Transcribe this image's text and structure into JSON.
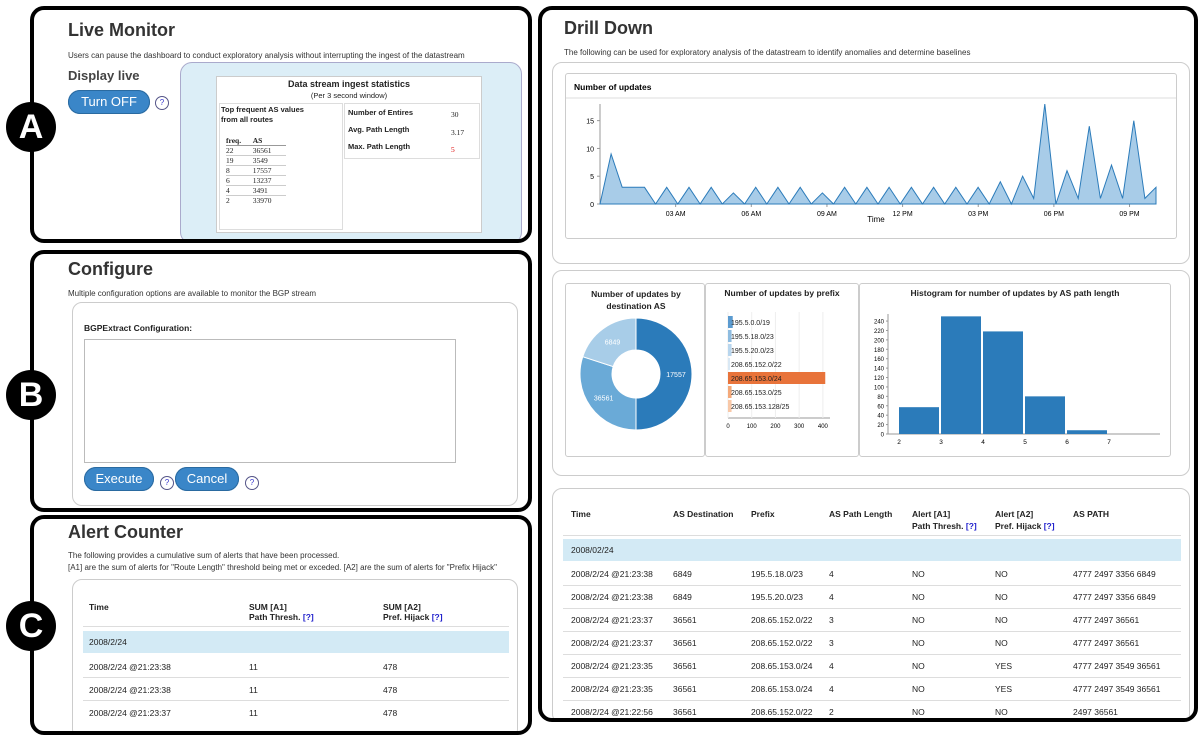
{
  "live_monitor": {
    "title": "Live Monitor",
    "description": "Users can pause the dashboard to conduct exploratory analysis without interrupting the ingest of the datastream",
    "display_live_label": "Display live",
    "turn_off_label": "Turn OFF",
    "help": "?",
    "stats": {
      "title": "Data stream ingest statistics",
      "subtitle": "(Per 3 second window)",
      "top_as_title": "Top frequent AS values from all routes",
      "freq_header": "freq.",
      "as_header": "AS",
      "top_as_rows": [
        {
          "freq": "22",
          "as": "36561"
        },
        {
          "freq": "19",
          "as": "3549"
        },
        {
          "freq": "8",
          "as": "17557"
        },
        {
          "freq": "6",
          "as": "13237"
        },
        {
          "freq": "4",
          "as": "3491"
        },
        {
          "freq": "2",
          "as": "33970"
        }
      ],
      "entries_label": "Number of Entires",
      "entries_value": "30",
      "avg_path_label": "Avg. Path Length",
      "avg_path_value": "3.17",
      "max_path_label": "Max. Path Length",
      "max_path_value": "5"
    }
  },
  "configure": {
    "title": "Configure",
    "description": "Multiple configuration options are available to monitor the BGP stream",
    "config_label": "BGPExtract Configuration:",
    "config_value": "",
    "execute_label": "Execute",
    "cancel_label": "Cancel",
    "help": "?"
  },
  "alert_counter": {
    "title": "Alert Counter",
    "description_1": "The following provides a cumulative sum of alerts that have been processed.",
    "description_2": "[A1] are the sum of alerts for \"Route Length\" threshold being met or exceded. [A2] are the sum of alerts for \"Prefix Hijack\"",
    "columns": {
      "time": "Time",
      "a1_line1": "SUM [A1]",
      "a1_line2": "Path Thresh.",
      "a2_line1": "SUM [A2]",
      "a2_line2": "Pref. Hijack",
      "help_link": "[?]"
    },
    "group": "2008/2/24",
    "rows": [
      {
        "time": "2008/2/24 @21:23:38",
        "a1": "11",
        "a2": "478"
      },
      {
        "time": "2008/2/24 @21:23:38",
        "a1": "11",
        "a2": "478"
      },
      {
        "time": "2008/2/24 @21:23:37",
        "a1": "11",
        "a2": "478"
      }
    ]
  },
  "drill_down": {
    "title": "Drill Down",
    "description": "The following can be used for exploratory analysis of the datastream to identify anomalies and determine baselines",
    "table": {
      "columns": {
        "time": "Time",
        "as_dest": "AS Destination",
        "prefix": "Prefix",
        "path_len": "AS Path Length",
        "a1_line1": "Alert [A1]",
        "a1_line2": "Path Thresh.",
        "a2_line1": "Alert [A2]",
        "a2_line2": "Pref. Hijack",
        "help_link": "[?]",
        "as_path": "AS PATH"
      },
      "group": "2008/02/24",
      "rows": [
        {
          "time": "2008/2/24 @21:23:38",
          "as_dest": "6849",
          "prefix": "195.5.18.0/23",
          "path_len": "4",
          "a1": "NO",
          "a2": "NO",
          "as_path": "4777 2497 3356 6849"
        },
        {
          "time": "2008/2/24 @21:23:38",
          "as_dest": "6849",
          "prefix": "195.5.20.0/23",
          "path_len": "4",
          "a1": "NO",
          "a2": "NO",
          "as_path": "4777 2497 3356 6849"
        },
        {
          "time": "2008/2/24 @21:23:37",
          "as_dest": "36561",
          "prefix": "208.65.152.0/22",
          "path_len": "3",
          "a1": "NO",
          "a2": "NO",
          "as_path": "4777 2497 36561"
        },
        {
          "time": "2008/2/24 @21:23:37",
          "as_dest": "36561",
          "prefix": "208.65.152.0/22",
          "path_len": "3",
          "a1": "NO",
          "a2": "NO",
          "as_path": "4777 2497 36561"
        },
        {
          "time": "2008/2/24 @21:23:35",
          "as_dest": "36561",
          "prefix": "208.65.153.0/24",
          "path_len": "4",
          "a1": "NO",
          "a2": "YES",
          "as_path": "4777 2497 3549 36561"
        },
        {
          "time": "2008/2/24 @21:23:35",
          "as_dest": "36561",
          "prefix": "208.65.153.0/24",
          "path_len": "4",
          "a1": "NO",
          "a2": "YES",
          "as_path": "4777 2497 3549 36561"
        },
        {
          "time": "2008/2/24 @21:22:56",
          "as_dest": "36561",
          "prefix": "208.65.152.0/22",
          "path_len": "2",
          "a1": "NO",
          "a2": "NO",
          "as_path": "2497 36561"
        }
      ]
    }
  },
  "labels": {
    "a": "A",
    "b": "B",
    "c": "C"
  },
  "colors": {
    "accent": "#3a86c8",
    "highlight": "#e8733a",
    "band": "#d3eaf5",
    "panel_bg": "#dceef7"
  },
  "chart_data": [
    {
      "type": "area",
      "title": "Number of updates",
      "xlabel": "Time",
      "ylabel": "",
      "x_ticks": [
        "03 AM",
        "06 AM",
        "09 AM",
        "12 PM",
        "03 PM",
        "06 PM",
        "09 PM"
      ],
      "y_ticks": [
        0,
        5,
        10,
        15
      ],
      "ylim": [
        0,
        18
      ],
      "series": [
        {
          "values": [
            0,
            9,
            3,
            3,
            3,
            0,
            3,
            0,
            3,
            0,
            3,
            0,
            2,
            0,
            3,
            0,
            3,
            0,
            3,
            0,
            2,
            0,
            3,
            0,
            3,
            0,
            3,
            0,
            3,
            0,
            3,
            0,
            3,
            0,
            3,
            0,
            4,
            0,
            5,
            1,
            18,
            0,
            6,
            1,
            14,
            1,
            7,
            1,
            15,
            1,
            3
          ]
        }
      ]
    },
    {
      "type": "pie",
      "title": "Number of updates by destination AS",
      "labels": [
        "17557",
        "36561",
        "6849"
      ],
      "values": [
        50,
        30,
        20
      ],
      "colors": [
        "#2b7bba",
        "#6aaad7",
        "#a8cde8"
      ]
    },
    {
      "type": "bar",
      "title": "Number of updates by prefix",
      "categories": [
        "195.5.0.0/19",
        "195.5.18.0/23",
        "195.5.20.0/23",
        "208.65.152.0/22",
        "208.65.153.0/24",
        "208.65.153.0/25",
        "208.65.153.128/25"
      ],
      "values": [
        20,
        15,
        15,
        5,
        410,
        15,
        15
      ],
      "x_ticks": [
        0,
        100,
        200,
        300,
        400
      ],
      "xlim": [
        0,
        430
      ],
      "colors": [
        "#5b9bd0",
        "#8ebce0",
        "#b8d6ee",
        "#d9e8f4",
        "#e8733a",
        "#f4a97a",
        "#f8c8a8"
      ]
    },
    {
      "type": "bar",
      "title": "Histogram for number of updates by AS path length",
      "categories": [
        "2",
        "3",
        "4",
        "5",
        "6",
        "7"
      ],
      "values": [
        57,
        250,
        218,
        80,
        8,
        0
      ],
      "y_ticks": [
        0,
        20,
        40,
        60,
        80,
        100,
        120,
        140,
        160,
        180,
        200,
        220,
        240
      ],
      "ylim": [
        0,
        255
      ]
    }
  ]
}
